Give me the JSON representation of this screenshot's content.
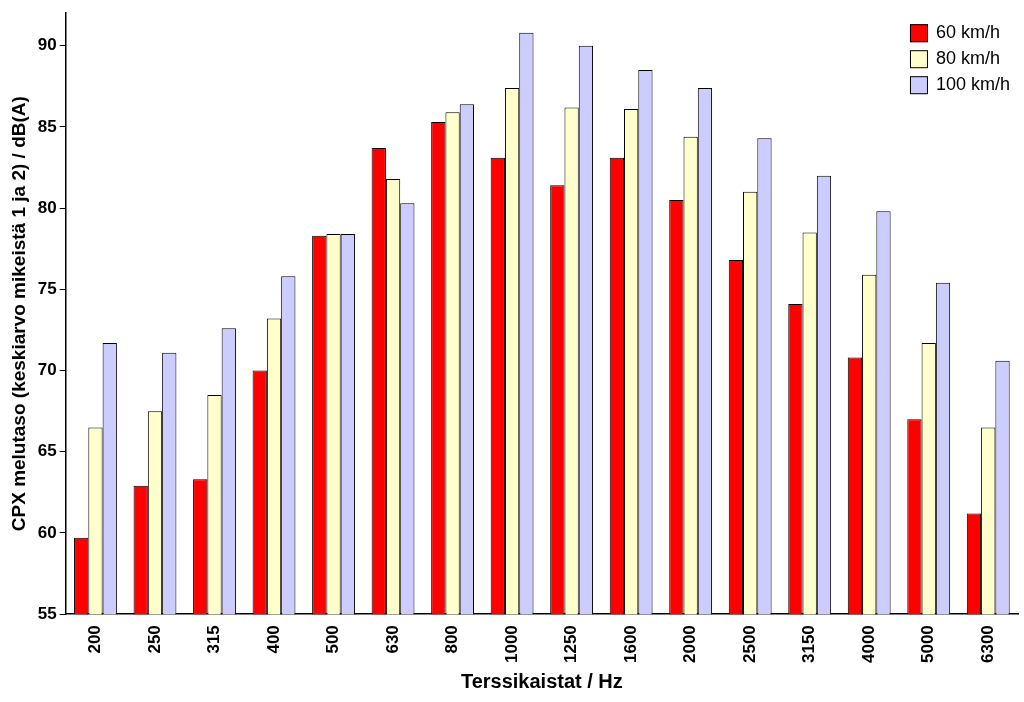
{
  "chart_data": {
    "type": "bar",
    "x_label": "Terssikaistat / Hz",
    "y_label": "CPX melutaso (keskiarvo mikeistä 1 ja 2) / dB(A)",
    "categories": [
      "200",
      "250",
      "315",
      "400",
      "500",
      "630",
      "800",
      "1000",
      "1250",
      "1600",
      "2000",
      "2500",
      "3150",
      "4000",
      "5000",
      "6300"
    ],
    "series": [
      {
        "name": "60 km/h",
        "color": "#ff0000",
        "values": [
          59.7,
          62.9,
          63.3,
          70.0,
          78.3,
          83.7,
          85.3,
          83.1,
          81.4,
          83.1,
          80.5,
          76.8,
          74.1,
          70.8,
          67.0,
          61.2
        ]
      },
      {
        "name": "80 km/h",
        "color": "#ffffcc",
        "values": [
          66.5,
          67.5,
          68.5,
          73.2,
          78.4,
          81.8,
          85.9,
          87.4,
          86.2,
          86.1,
          84.4,
          81.0,
          78.5,
          75.9,
          71.7,
          66.5
        ]
      },
      {
        "name": "100 km/h",
        "color": "#ccccff",
        "values": [
          71.7,
          71.1,
          72.6,
          75.8,
          78.4,
          80.3,
          86.4,
          90.8,
          90.0,
          88.5,
          87.4,
          84.3,
          82.0,
          79.8,
          75.4,
          70.6
        ]
      }
    ],
    "ylim": [
      55,
      92
    ],
    "yticks": [
      55,
      60,
      65,
      70,
      75,
      80,
      85,
      90
    ],
    "grid": false,
    "legend": "top-right"
  }
}
